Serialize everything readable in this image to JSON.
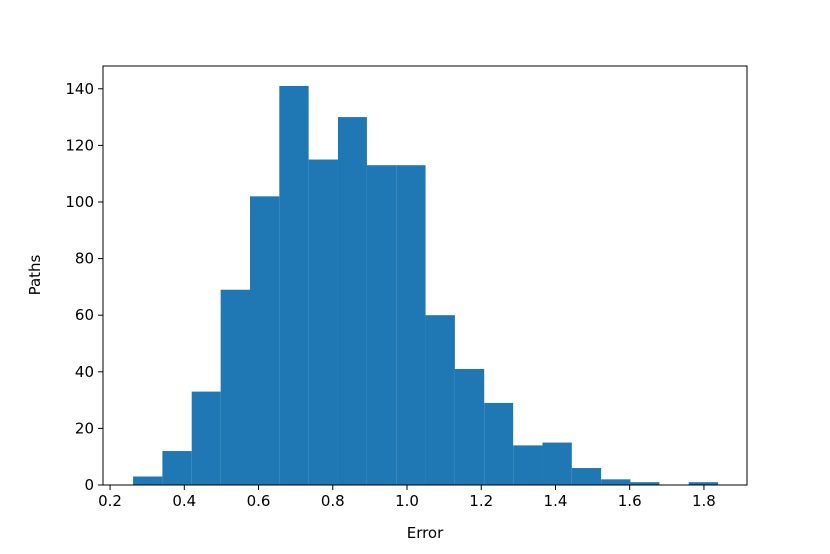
{
  "chart_data": {
    "type": "histogram",
    "xlabel": "Error",
    "ylabel": "Paths",
    "color": "#1f77b4",
    "bins": [
      0.262,
      0.341,
      0.42,
      0.498,
      0.577,
      0.656,
      0.735,
      0.814,
      0.892,
      0.971,
      1.05,
      1.129,
      1.208,
      1.286,
      1.365,
      1.444,
      1.523,
      1.602,
      1.68,
      1.759,
      1.838
    ],
    "values": [
      3,
      12,
      33,
      69,
      102,
      141,
      115,
      130,
      113,
      113,
      60,
      41,
      29,
      14,
      15,
      6,
      2,
      1,
      0,
      1
    ],
    "xlim": [
      0.181,
      1.916
    ],
    "ylim": [
      0,
      148.05
    ],
    "xticks": [
      0.2,
      0.4,
      0.6,
      0.8,
      {
        "value": 1.0,
        "label": "1.0"
      },
      1.2,
      1.4,
      1.6,
      1.8
    ],
    "yticks": [
      0,
      20,
      40,
      60,
      80,
      100,
      120,
      140
    ]
  }
}
